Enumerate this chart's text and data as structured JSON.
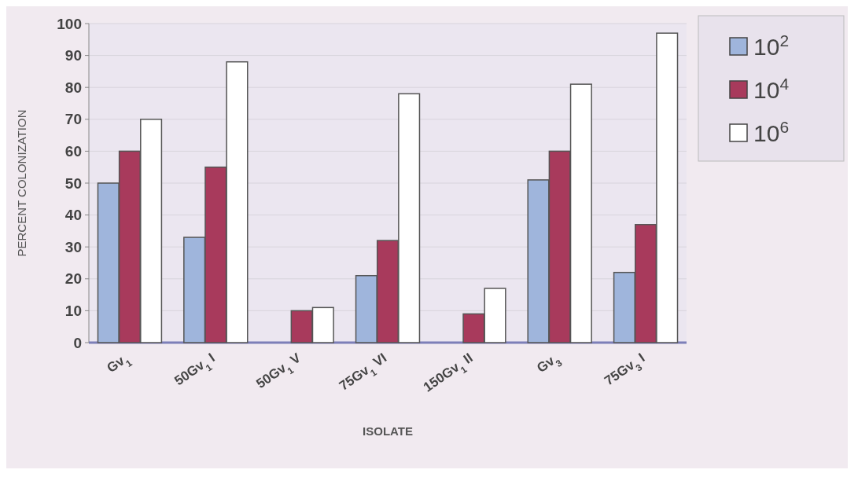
{
  "chart_data": {
    "type": "bar",
    "xlabel": "ISOLATE",
    "ylabel": "PERCENT COLONIZATION",
    "categories": [
      "Gv$_{1}$",
      "50Gv$_{1}$ I",
      "50Gv$_{1}$ V",
      "75Gv$_{1}$ VI",
      "150Gv$_{1}$ II",
      "Gv$_{3}$",
      "75Gv$_{3}$ I"
    ],
    "series": [
      {
        "name": "10$^{2}$",
        "color": "#9fb5dc",
        "values": [
          50,
          33,
          0,
          21,
          0,
          51,
          22
        ]
      },
      {
        "name": "10$^{4}$",
        "color": "#a83a5c",
        "values": [
          60,
          55,
          10,
          32,
          9,
          60,
          37
        ]
      },
      {
        "name": "10$^{6}$",
        "color": "#ffffff",
        "values": [
          70,
          88,
          11,
          78,
          17,
          81,
          97
        ]
      }
    ],
    "ylim": [
      0,
      100
    ],
    "yticks": [
      0,
      10,
      20,
      30,
      40,
      50,
      60,
      70,
      80,
      90,
      100
    ],
    "grid": "y",
    "legend": "top right"
  }
}
